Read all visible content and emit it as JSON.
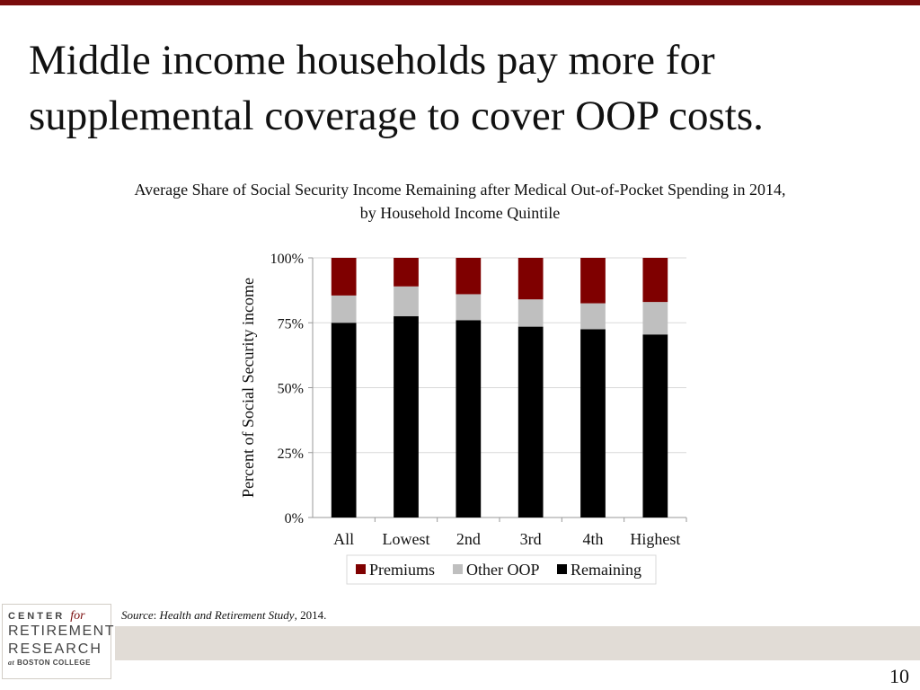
{
  "slide": {
    "title": "Middle income households pay more for supplemental coverage to cover OOP costs.",
    "page_number": "10"
  },
  "chart_data": {
    "type": "bar",
    "stacked": true,
    "title_line1": "Average Share of Social Security Income Remaining after Medical Out-of-Pocket Spending in 2014,",
    "title_line2": "by Household Income Quintile",
    "ylabel": "Percent of Social Security income",
    "xlabel": "",
    "ylim": [
      0,
      100
    ],
    "yticks": [
      "0%",
      "25%",
      "50%",
      "75%",
      "100%"
    ],
    "categories": [
      "All",
      "Lowest",
      "2nd",
      "3rd",
      "4th",
      "Highest"
    ],
    "series": [
      {
        "name": "Remaining",
        "color": "#000000",
        "values": [
          75,
          77.5,
          76,
          73.5,
          72.5,
          70.5
        ]
      },
      {
        "name": "Other OOP",
        "color": "#bfbfbf",
        "values": [
          10.5,
          11.5,
          10,
          10.5,
          10,
          12.5
        ]
      },
      {
        "name": "Premiums",
        "color": "#7f0000",
        "values": [
          14.5,
          11,
          14,
          16,
          17.5,
          17
        ]
      }
    ],
    "legend_order": [
      "Premiums",
      "Other OOP",
      "Remaining"
    ],
    "legend_position": "bottom",
    "grid": true
  },
  "source": {
    "label": "Source",
    "separator": ": ",
    "study": "Health and Retirement Study",
    "suffix": ", 2014."
  },
  "logo": {
    "line1": "CENTER",
    "line1_for": "for",
    "line2": "RETIREMENT",
    "line3": "RESEARCH",
    "line4_at": "at",
    "line4": "BOSTON COLLEGE"
  }
}
